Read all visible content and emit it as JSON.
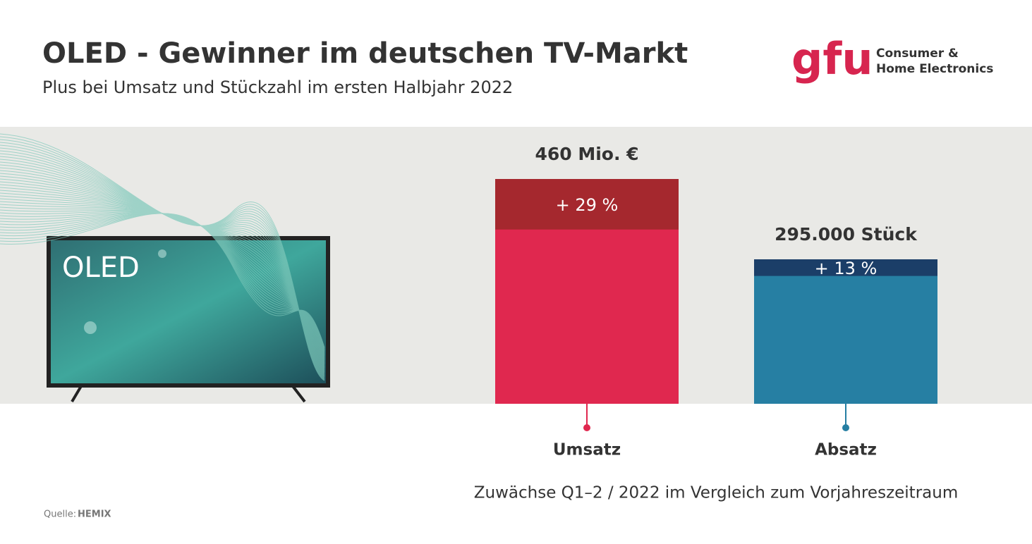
{
  "header": {
    "title": "OLED - Gewinner im deutschen TV-Markt",
    "subtitle": "Plus bei Umsatz und Stückzahl im ersten Halbjahr 2022"
  },
  "logo": {
    "brand": "gfu",
    "line1": "Consumer &",
    "line2": "Home Electronics"
  },
  "tv_label": "OLED",
  "source": {
    "label": "Quelle:",
    "name": "HEMIX"
  },
  "chart_data": {
    "type": "bar",
    "categories": [
      "Umsatz",
      "Absatz"
    ],
    "values": [
      460,
      295000
    ],
    "value_labels": [
      "460 Mio. €",
      "295.000 Stück"
    ],
    "growth": [
      29,
      13
    ],
    "growth_labels": [
      "+ 29 %",
      "+ 13 %"
    ],
    "colors": [
      "#e0284f",
      "#267fa3"
    ],
    "growth_colors": [
      "#a5282e",
      "#1b3e68"
    ],
    "note": "Zuwächse Q1–2 / 2022 im Vergleich zum Vorjahreszeitraum"
  }
}
